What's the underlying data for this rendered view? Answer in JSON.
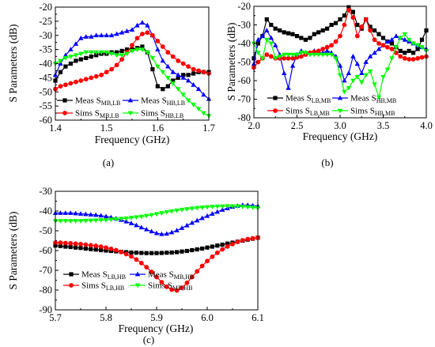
{
  "chart_data": [
    {
      "type": "line",
      "panel_label": "(a)",
      "xlabel": "Frequency (GHz)",
      "ylabel": "S Parameters (dB)",
      "xlim": [
        1.4,
        1.7
      ],
      "ylim": [
        -60,
        -20
      ],
      "xticks": [
        "1.4",
        "1.5",
        "1.6",
        "1.7"
      ],
      "yticks": [
        "-20",
        "-25",
        "-30",
        "-35",
        "-40",
        "-45",
        "-50",
        "-55",
        "-60"
      ],
      "grid": false,
      "legend": "lower-left",
      "x": [
        1.4,
        1.41,
        1.42,
        1.43,
        1.44,
        1.45,
        1.46,
        1.47,
        1.48,
        1.49,
        1.5,
        1.51,
        1.52,
        1.53,
        1.54,
        1.55,
        1.56,
        1.57,
        1.58,
        1.59,
        1.6,
        1.61,
        1.62,
        1.63,
        1.64,
        1.65,
        1.66,
        1.67,
        1.68,
        1.69,
        1.7
      ],
      "series": [
        {
          "name": "Meas S",
          "subscript": "MB,LB",
          "color": "#000000",
          "marker": "square",
          "values": [
            -46,
            -43,
            -41,
            -40,
            -39,
            -38.5,
            -38,
            -37.5,
            -37,
            -36.5,
            -36.5,
            -36,
            -36,
            -35.5,
            -35,
            -35,
            -34.5,
            -34,
            -36,
            -42,
            -48,
            -49,
            -48,
            -46,
            -45,
            -44,
            -44,
            -43.5,
            -43,
            -43,
            -43
          ]
        },
        {
          "name": "Meas S",
          "subscript": "HB,LB",
          "color": "#0000ff",
          "marker": "triangle-up",
          "values": [
            -44,
            -40,
            -37,
            -35,
            -33,
            -31,
            -30.5,
            -30.5,
            -30,
            -30,
            -30,
            -30,
            -29.5,
            -29,
            -28.5,
            -28,
            -26.5,
            -25.5,
            -26.5,
            -30,
            -35,
            -39,
            -41,
            -43,
            -44,
            -45,
            -46,
            -47.5,
            -49,
            -51,
            -52.5
          ]
        },
        {
          "name": "Sims S",
          "subscript": "MB,LB",
          "color": "#ff0000",
          "marker": "circle",
          "values": [
            -49,
            -48,
            -47.5,
            -47,
            -46.5,
            -46,
            -45.5,
            -45,
            -44.5,
            -44,
            -43,
            -42,
            -40.5,
            -38.5,
            -36,
            -33.5,
            -31,
            -29.5,
            -29,
            -30,
            -32,
            -34,
            -36,
            -37.5,
            -39,
            -40,
            -41,
            -42,
            -42.5,
            -43,
            -43.5
          ]
        },
        {
          "name": "Sims S",
          "subscript": "HB,LB",
          "color": "#00ff00",
          "marker": "triangle-down",
          "values": [
            -40,
            -39,
            -38,
            -37.5,
            -37,
            -36.5,
            -36,
            -36,
            -36,
            -36,
            -36,
            -36.5,
            -37,
            -37,
            -36.5,
            -35.5,
            -35,
            -35,
            -36,
            -38,
            -41,
            -43,
            -45,
            -47,
            -49,
            -51,
            -53,
            -54.5,
            -56,
            -57.5,
            -58.5
          ]
        }
      ]
    },
    {
      "type": "line",
      "panel_label": "(b)",
      "xlabel": "Frequency (GHz)",
      "ylabel": "S Parameters (dB)",
      "xlim": [
        2.0,
        4.0
      ],
      "ylim": [
        -80,
        -20
      ],
      "xticks": [
        "2.0",
        "2.5",
        "3.0",
        "3.5",
        "4.0"
      ],
      "yticks": [
        "-20",
        "-30",
        "-40",
        "-50",
        "-60",
        "-70",
        "-80"
      ],
      "grid": false,
      "legend": "lower-left",
      "x": [
        2.0,
        2.05,
        2.1,
        2.15,
        2.2,
        2.25,
        2.3,
        2.35,
        2.4,
        2.45,
        2.5,
        2.55,
        2.6,
        2.65,
        2.7,
        2.75,
        2.8,
        2.85,
        2.9,
        2.95,
        3.0,
        3.05,
        3.1,
        3.15,
        3.2,
        3.25,
        3.3,
        3.35,
        3.4,
        3.45,
        3.5,
        3.55,
        3.6,
        3.65,
        3.7,
        3.75,
        3.8,
        3.85,
        3.9,
        3.95,
        4.0
      ],
      "series": [
        {
          "name": "Meas S",
          "subscript": "LB,MB",
          "color": "#000000",
          "marker": "square",
          "values": [
            -48,
            -40,
            -36,
            -27,
            -30,
            -32,
            -33,
            -34,
            -34.5,
            -35,
            -36,
            -37,
            -38,
            -37,
            -35,
            -34,
            -33,
            -32,
            -30,
            -29,
            -27,
            -25,
            -20.5,
            -23,
            -30,
            -32,
            -27,
            -31,
            -33,
            -35,
            -37,
            -39,
            -40,
            -42,
            -44,
            -45,
            -44,
            -45,
            -43,
            -38,
            -33
          ]
        },
        {
          "name": "Meas S",
          "subscript": "HB,MB",
          "color": "#0000ff",
          "marker": "triangle-up",
          "values": [
            -51,
            -38,
            -36,
            -33,
            -37,
            -41,
            -46,
            -56,
            -64,
            -52,
            -46,
            -44,
            -45,
            -45,
            -44,
            -45,
            -45,
            -44,
            -45,
            -47,
            -52,
            -60,
            -56,
            -47,
            -51,
            -56,
            -50,
            -47,
            -45,
            -43,
            -41,
            -39,
            -38,
            -36,
            -37,
            -38,
            -39,
            -40,
            -41,
            -42,
            -43
          ]
        },
        {
          "name": "Sims S",
          "subscript": "LB,MB",
          "color": "#ff0000",
          "marker": "circle",
          "values": [
            -53,
            -50,
            -48,
            -46,
            -47,
            -48,
            -48,
            -48,
            -48,
            -48,
            -47.5,
            -47,
            -46,
            -45,
            -44.5,
            -44,
            -43,
            -42,
            -41,
            -39,
            -36,
            -30,
            -22,
            -26,
            -36,
            -31,
            -27,
            -33,
            -38,
            -40,
            -41,
            -42,
            -43,
            -45,
            -47,
            -48,
            -48.5,
            -48.5,
            -48,
            -47.5,
            -47
          ]
        },
        {
          "name": "Sims S",
          "subscript": "HB,MB",
          "color": "#00ff00",
          "marker": "triangle-down",
          "values": [
            -40,
            -45,
            -48,
            -38,
            -40,
            -48,
            -47,
            -46,
            -46,
            -46,
            -46,
            -45,
            -45,
            -46,
            -46,
            -46,
            -46,
            -46,
            -46,
            -48,
            -57,
            -66,
            -64,
            -60,
            -58,
            -61,
            -57,
            -55,
            -62,
            -69,
            -58,
            -54,
            -48,
            -42,
            -37,
            -35,
            -38,
            -40,
            -41,
            -42,
            -44
          ]
        }
      ]
    },
    {
      "type": "line",
      "panel_label": "(c)",
      "xlabel": "Frequency (GHz)",
      "ylabel": "S Parameters (dB)",
      "xlim": [
        5.7,
        6.1
      ],
      "ylim": [
        -90,
        -30
      ],
      "xticks": [
        "5.7",
        "5.8",
        "5.9",
        "6.0",
        "6.1"
      ],
      "yticks": [
        "-30",
        "-40",
        "-50",
        "-60",
        "-70",
        "-80",
        "-90"
      ],
      "grid": false,
      "legend": "lower-left",
      "x": [
        5.7,
        5.71,
        5.72,
        5.73,
        5.74,
        5.75,
        5.76,
        5.77,
        5.78,
        5.79,
        5.8,
        5.81,
        5.82,
        5.83,
        5.84,
        5.85,
        5.86,
        5.87,
        5.88,
        5.89,
        5.9,
        5.91,
        5.92,
        5.93,
        5.94,
        5.95,
        5.96,
        5.97,
        5.98,
        5.99,
        6.0,
        6.01,
        6.02,
        6.03,
        6.04,
        6.05,
        6.06,
        6.07,
        6.08,
        6.09,
        6.1
      ],
      "series": [
        {
          "name": "Meas S",
          "subscript": "LB,HB",
          "color": "#000000",
          "marker": "square",
          "values": [
            -57.5,
            -57.7,
            -58,
            -58.2,
            -58.5,
            -58.7,
            -59,
            -59.3,
            -59.5,
            -59.8,
            -60,
            -60.2,
            -60.4,
            -60.6,
            -60.8,
            -61,
            -61.1,
            -61.2,
            -61.3,
            -61.3,
            -61.3,
            -61.2,
            -61.1,
            -61,
            -60.8,
            -60.5,
            -60.2,
            -59.8,
            -59.4,
            -59,
            -58.5,
            -58,
            -57.5,
            -57,
            -56.5,
            -56,
            -55.5,
            -55,
            -54.5,
            -54,
            -53.5
          ]
        },
        {
          "name": "Meas S",
          "subscript": "MB,HB",
          "color": "#0000ff",
          "marker": "triangle-up",
          "values": [
            -41,
            -41,
            -41,
            -41,
            -41.2,
            -41.4,
            -41.6,
            -41.8,
            -42,
            -42.3,
            -42.7,
            -43.2,
            -43.8,
            -44.5,
            -45.3,
            -46.2,
            -47.2,
            -48.3,
            -49.3,
            -50.3,
            -51.2,
            -51.7,
            -51.5,
            -50.8,
            -49.8,
            -48.6,
            -47.3,
            -46,
            -44.8,
            -43.6,
            -42.5,
            -41.4,
            -40.4,
            -39.4,
            -38.6,
            -37.9,
            -37.4,
            -37,
            -37,
            -37.2,
            -37.5
          ]
        },
        {
          "name": "Sims S",
          "subscript": "LB,HB",
          "color": "#ff0000",
          "marker": "circle",
          "values": [
            -56,
            -56,
            -56.2,
            -56.3,
            -56.5,
            -56.7,
            -57,
            -57.3,
            -57.6,
            -58,
            -58.5,
            -59.1,
            -59.8,
            -60.7,
            -61.8,
            -63,
            -64.5,
            -66.3,
            -68.4,
            -70.8,
            -73.4,
            -76,
            -78.3,
            -79.8,
            -80.2,
            -78.8,
            -76.3,
            -73.4,
            -70.5,
            -67.8,
            -65.3,
            -63.1,
            -61.1,
            -59.4,
            -57.9,
            -56.7,
            -55.6,
            -54.8,
            -54.2,
            -53.8,
            -53.5
          ]
        },
        {
          "name": "Sims S",
          "subscript": "MB,HB",
          "color": "#00ff00",
          "marker": "triangle-down",
          "values": [
            -45,
            -45,
            -45,
            -45,
            -45,
            -45,
            -44.9,
            -44.8,
            -44.7,
            -44.6,
            -44.5,
            -44.3,
            -44.1,
            -43.9,
            -43.7,
            -43.4,
            -43.1,
            -42.8,
            -42.4,
            -42,
            -41.5,
            -41,
            -40.5,
            -40.1,
            -39.7,
            -39.3,
            -39,
            -38.7,
            -38.4,
            -38.2,
            -38,
            -37.8,
            -37.7,
            -37.6,
            -37.5,
            -37.5,
            -37.6,
            -37.8,
            -38,
            -38.2,
            -38.5
          ]
        }
      ]
    }
  ]
}
